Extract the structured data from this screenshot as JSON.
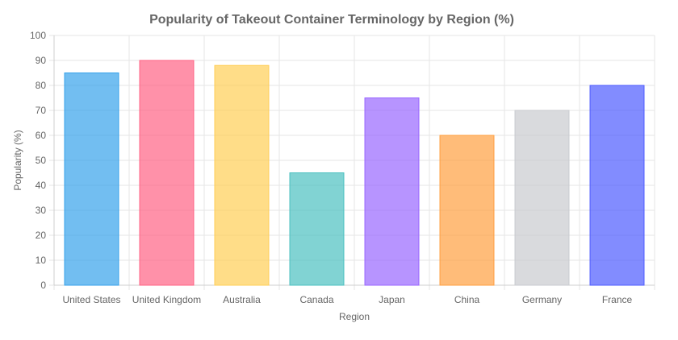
{
  "chart_data": {
    "type": "bar",
    "title": "Popularity of Takeout Container Terminology by Region (%)",
    "xlabel": "Region",
    "ylabel": "Popularity (%)",
    "ylim": [
      0,
      100
    ],
    "yticks": [
      "0",
      "10",
      "20",
      "30",
      "40",
      "50",
      "60",
      "70",
      "80",
      "90",
      "100"
    ],
    "categories": [
      "United States",
      "United Kingdom",
      "Australia",
      "Canada",
      "Japan",
      "China",
      "Germany",
      "France"
    ],
    "values": [
      85,
      90,
      88,
      45,
      75,
      60,
      70,
      80
    ],
    "colors": [
      "#36a2eb",
      "#ff6384",
      "#ffce56",
      "#4bc0c0",
      "#9966ff",
      "#ff9f40",
      "#c9cbcf",
      "#4d5bff"
    ],
    "grid": true,
    "legend": "none"
  }
}
